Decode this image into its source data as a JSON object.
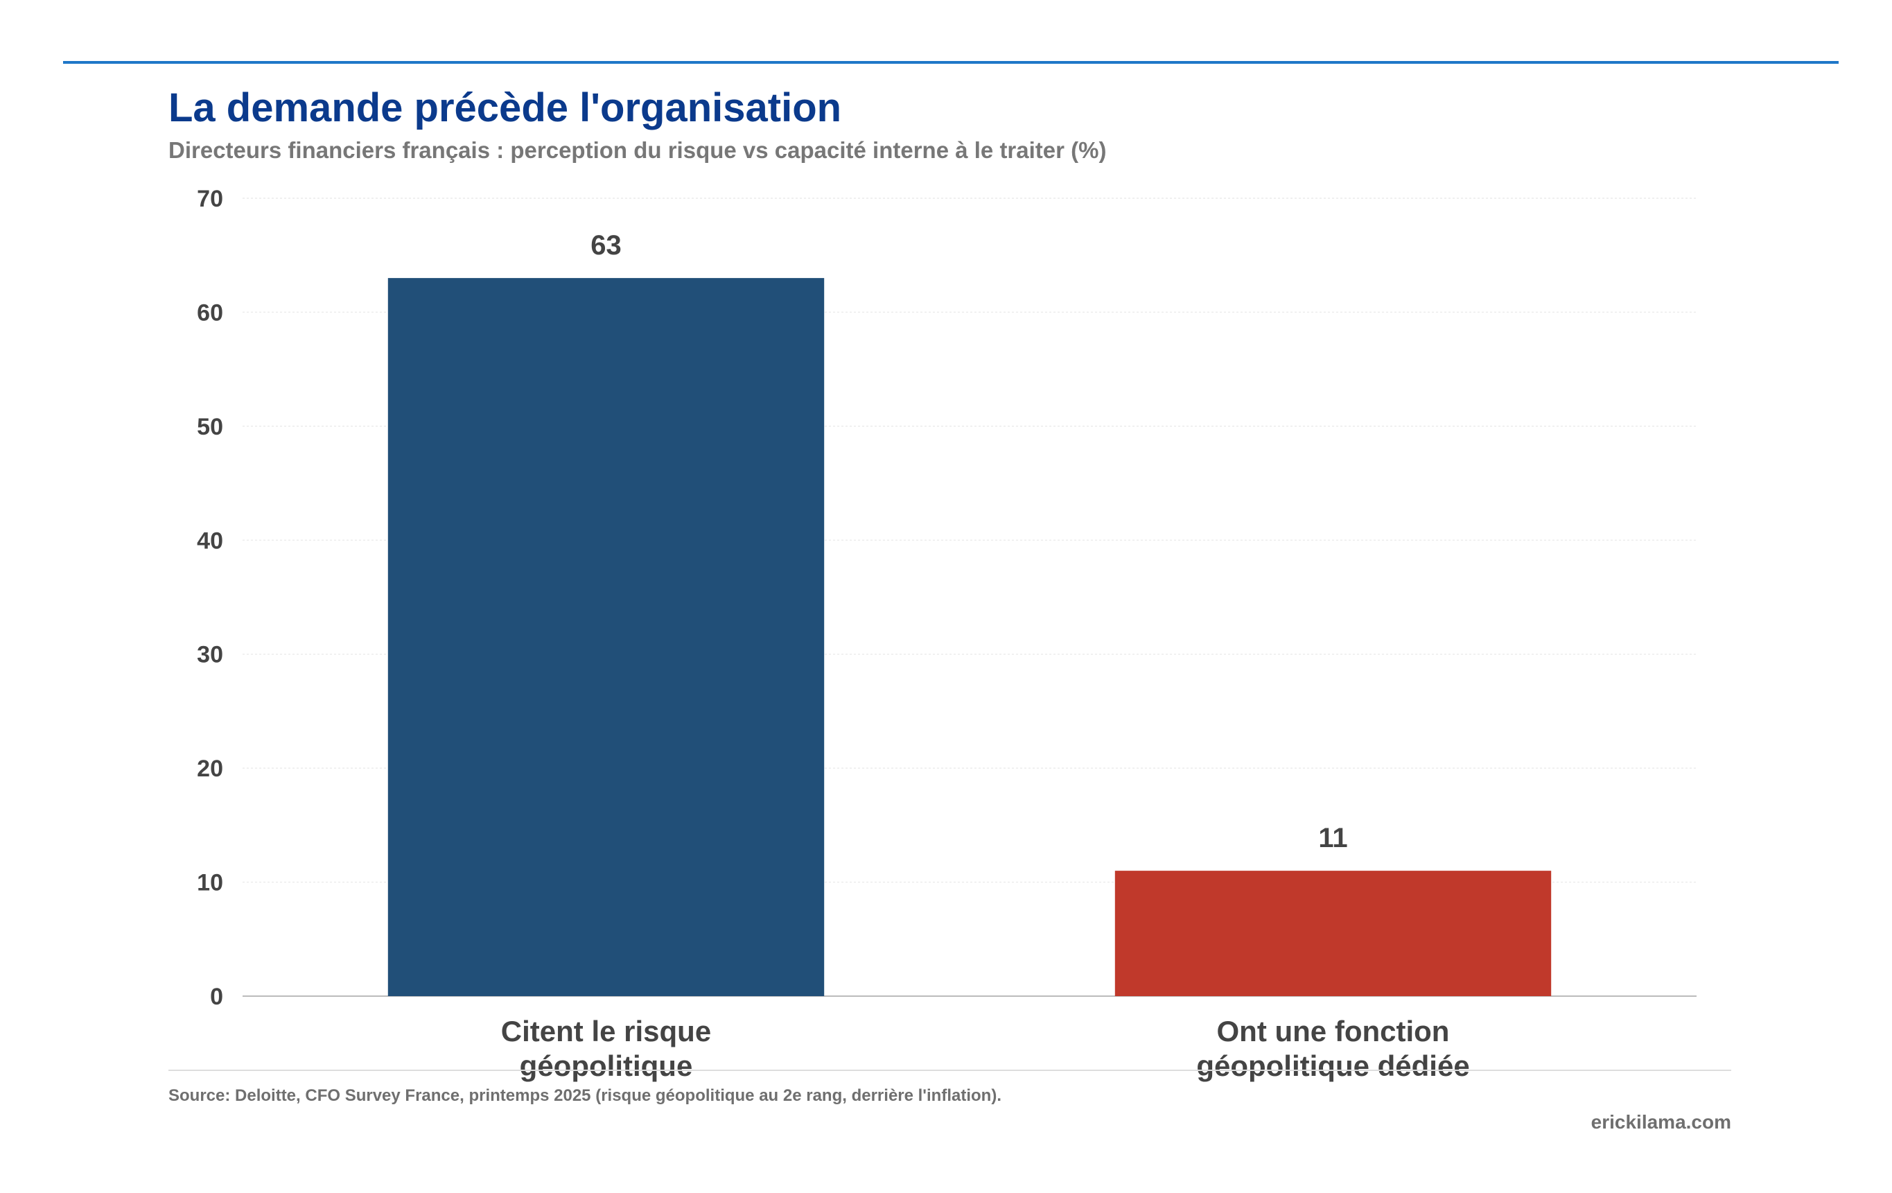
{
  "header": {
    "title": "La demande précède l'organisation",
    "subtitle": "Directeurs financiers français : perception du risque vs capacité interne à le traiter (%)"
  },
  "footer": {
    "source": "Source: Deloitte, CFO Survey France, printemps 2025 (risque géopolitique au 2e rang, derrière l'inflation).",
    "site": "erickilama.com"
  },
  "chart_data": {
    "type": "bar",
    "title": "La demande précède l'organisation",
    "subtitle": "Directeurs financiers français : perception du risque vs capacité interne à le traiter (%)",
    "xlabel": "",
    "ylabel": "",
    "categories": [
      [
        "Citent le risque",
        "géopolitique"
      ],
      [
        "Ont une fonction",
        "géopolitique dédiée"
      ]
    ],
    "values": [
      63,
      11
    ],
    "value_labels": [
      "63",
      "11"
    ],
    "colors": [
      "#214f78",
      "#c0392b"
    ],
    "ylim": [
      0,
      70
    ],
    "yticks": [
      0,
      10,
      20,
      30,
      40,
      50,
      60,
      70
    ],
    "grid": true,
    "legend": "none"
  }
}
